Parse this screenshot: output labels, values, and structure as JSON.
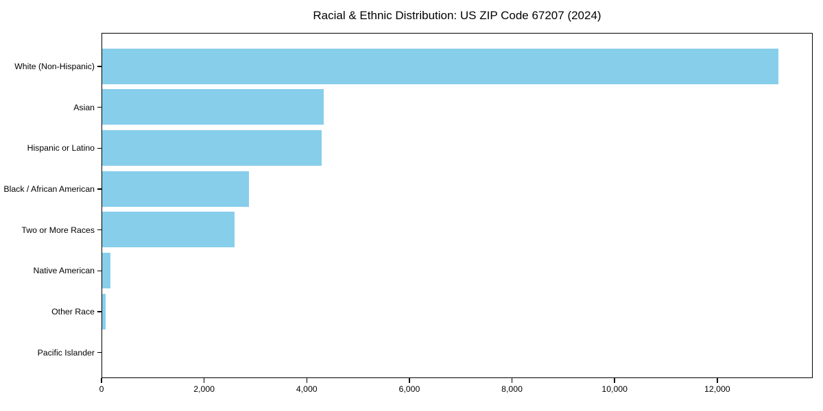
{
  "title": "Racial & Ethnic Distribution: US ZIP Code 67207 (2024)",
  "colors": {
    "bar_fill": "#87CEEB",
    "axis": "#000000",
    "background": "#ffffff",
    "text": "#000000"
  },
  "chart_data": {
    "type": "bar",
    "orientation": "horizontal",
    "title": "Racial & Ethnic Distribution: US ZIP Code 67207 (2024)",
    "categories": [
      "White (Non-Hispanic)",
      "Asian",
      "Hispanic or Latino",
      "Black / African American",
      "Two or More Races",
      "Native American",
      "Other Race",
      "Pacific Islander"
    ],
    "values": [
      13200,
      4330,
      4280,
      2870,
      2580,
      160,
      70,
      0
    ],
    "xlabel": "",
    "ylabel": "",
    "xlim": [
      0,
      13860
    ],
    "xticks": [
      0,
      2000,
      4000,
      6000,
      8000,
      10000,
      12000
    ],
    "xtick_labels": [
      "0",
      "2,000",
      "4,000",
      "6,000",
      "8,000",
      "10,000",
      "12,000"
    ],
    "grid": false,
    "legend": false,
    "bar_color": "#87CEEB"
  }
}
